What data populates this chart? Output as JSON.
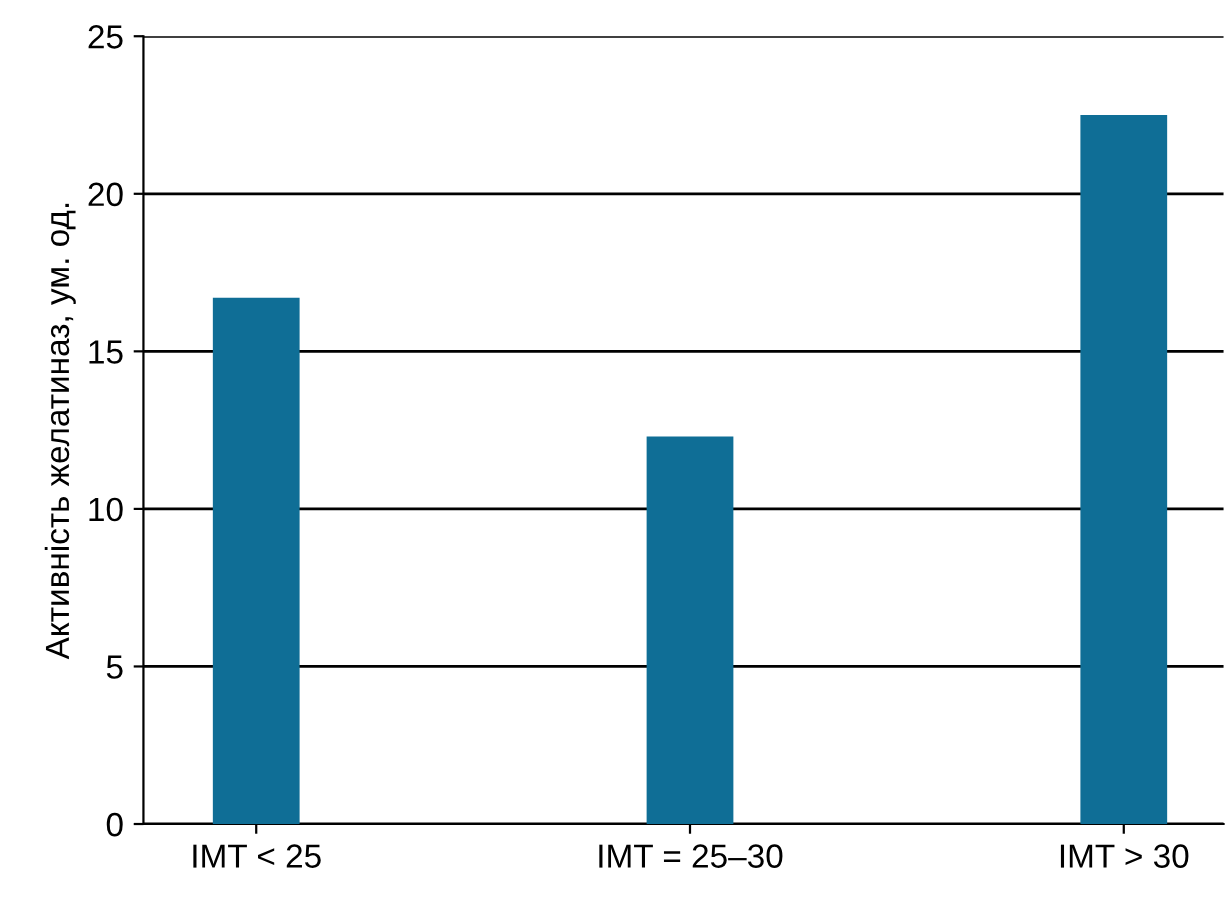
{
  "chart_data": {
    "type": "bar",
    "ylabel": "Активність желатиназ, ум. од.",
    "categories": [
      "IMT < 25",
      "IMT = 25–30",
      "IMT > 30"
    ],
    "values": [
      16.7,
      12.3,
      22.5
    ],
    "color": "#0f6e96",
    "ylim": [
      0,
      25
    ],
    "yticks": [
      0,
      5,
      10,
      15,
      20,
      25
    ],
    "grid": "y"
  }
}
